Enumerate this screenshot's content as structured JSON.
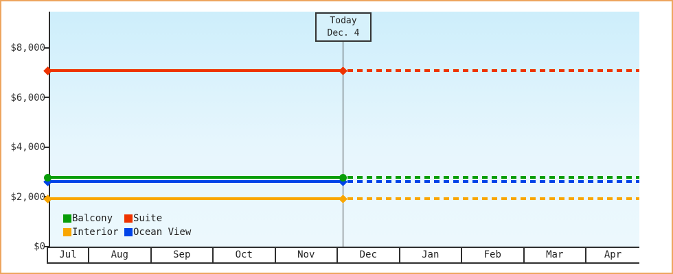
{
  "chart": {
    "border_color": "#eda55e",
    "background_color": "#ffffff",
    "plot_bg_top_color": "#cdeefb",
    "plot_bg_bottom_color": "#ecf8fd",
    "axis_color": "#2e2e2e"
  },
  "chart_data": {
    "type": "line",
    "title": "",
    "xlabel": "",
    "ylabel": "",
    "x_tick_labels": [
      "Jul",
      "Aug",
      "Sep",
      "Oct",
      "Nov",
      "Dec",
      "Jan",
      "Feb",
      "Mar",
      "Apr"
    ],
    "y_tick_labels": [
      "$0",
      "$2,000",
      "$4,000",
      "$6,000",
      "$8,000"
    ],
    "y_tick_values": [
      0,
      2000,
      4000,
      6000,
      8000
    ],
    "ylim": [
      0,
      8000
    ],
    "grid": false,
    "today_marker": {
      "label": "Today",
      "date": "Dec. 4"
    },
    "series": [
      {
        "name": "Suite",
        "color": "#ee3300",
        "value": 7080,
        "marker": "diamond",
        "past_style": "solid",
        "future_style": "dashed"
      },
      {
        "name": "Interior",
        "color": "#f9a602",
        "value": 1920,
        "marker": "diamond",
        "past_style": "solid",
        "future_style": "dashed"
      },
      {
        "name": "Ocean View",
        "color": "#0043e8",
        "value": 2620,
        "marker": "diamond",
        "past_style": "solid",
        "future_style": "dashed"
      },
      {
        "name": "Balcony",
        "color": "#089d08",
        "value": 2780,
        "marker": "circle",
        "past_style": "solid",
        "future_style": "dashed"
      }
    ],
    "legend_rows": [
      [
        "Balcony",
        "Suite"
      ],
      [
        "Interior",
        "Ocean View"
      ]
    ],
    "legend_position": "bottom-left-inside"
  }
}
